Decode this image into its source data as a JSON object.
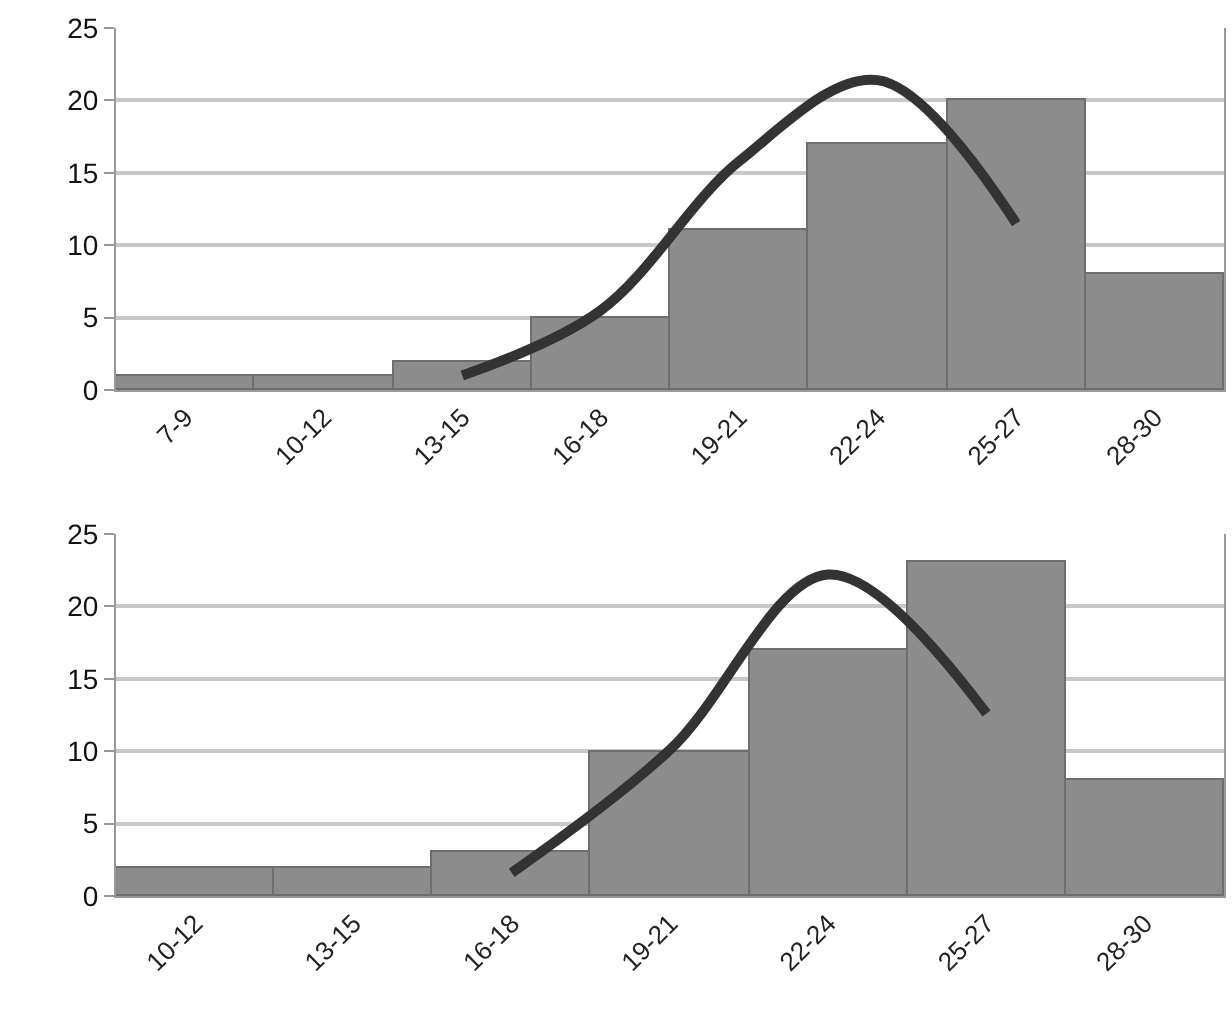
{
  "chart_data": [
    {
      "type": "bar",
      "categories": [
        "7-9",
        "10-12",
        "13-15",
        "16-18",
        "19-21",
        "22-24",
        "25-27",
        "28-30"
      ],
      "ylim": [
        0,
        25
      ],
      "yticks": [
        0,
        5,
        10,
        15,
        20,
        25
      ],
      "grid": "y",
      "series": [
        {
          "type": "bar",
          "color": "#8c8c8c",
          "values": [
            1,
            1,
            2,
            5,
            11,
            17,
            20,
            8
          ]
        },
        {
          "type": "line",
          "color": "#333333",
          "values": [
            null,
            null,
            1.0,
            5.5,
            15.8,
            21.4,
            11.5,
            null
          ]
        }
      ]
    },
    {
      "type": "bar",
      "categories": [
        "10-12",
        "13-15",
        "16-18",
        "19-21",
        "22-24",
        "25-27",
        "28-30"
      ],
      "ylim": [
        0,
        25
      ],
      "yticks": [
        0,
        5,
        10,
        15,
        20,
        25
      ],
      "grid": "y",
      "series": [
        {
          "type": "bar",
          "color": "#8c8c8c",
          "values": [
            2,
            2,
            3,
            10,
            17,
            23,
            8
          ]
        },
        {
          "type": "line",
          "color": "#333333",
          "values": [
            null,
            null,
            1.6,
            10.1,
            22.2,
            12.6,
            null
          ]
        }
      ]
    }
  ]
}
